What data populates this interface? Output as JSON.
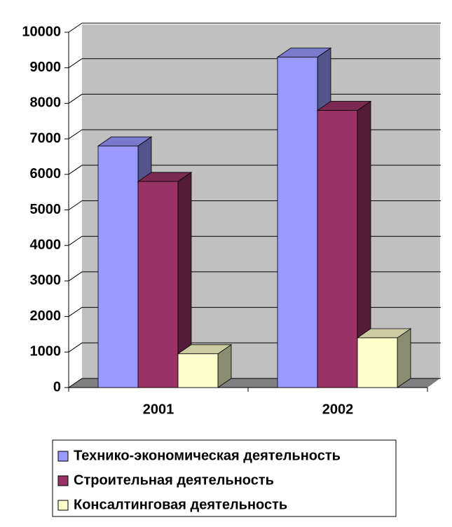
{
  "chart_data": {
    "type": "bar3d",
    "categories": [
      "2001",
      "2002"
    ],
    "series": [
      {
        "name": "Технико-экономическая деятельность",
        "color": "#9999ff",
        "values": [
          6800,
          9300
        ]
      },
      {
        "name": "Строительная деятельность",
        "color": "#993366",
        "values": [
          5800,
          7800
        ]
      },
      {
        "name": "Консалтинговая деятельность",
        "color": "#ffffcc",
        "values": [
          950,
          1400
        ]
      }
    ],
    "ylim": [
      0,
      10000
    ],
    "yticks": [
      0,
      1000,
      2000,
      3000,
      4000,
      5000,
      6000,
      7000,
      8000,
      9000,
      10000
    ],
    "grid": true
  }
}
